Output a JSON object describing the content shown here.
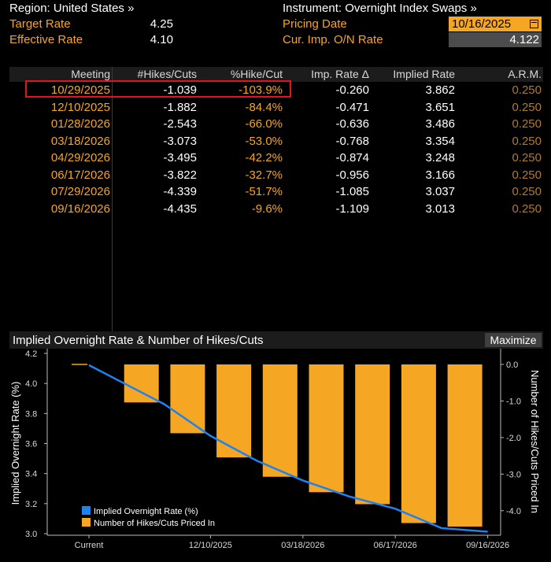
{
  "header": {
    "region": "Region: United States »",
    "target_rate_label": "Target Rate",
    "target_rate_value": "4.25",
    "effective_rate_label": "Effective Rate",
    "effective_rate_value": "4.10",
    "instrument": "Instrument: Overnight Index Swaps »",
    "pricing_date_label": "Pricing Date",
    "pricing_date_value": "10/16/2025",
    "cur_imp_label": "Cur. Imp. O/N Rate",
    "cur_imp_value": "4.122"
  },
  "table": {
    "columns": [
      "Meeting",
      "#Hikes/Cuts",
      "%Hike/Cut",
      "Imp. Rate Δ",
      "Implied Rate",
      "A.R.M."
    ],
    "rows": [
      [
        "10/29/2025",
        "-1.039",
        "-103.9%",
        "-0.260",
        "3.862",
        "0.250"
      ],
      [
        "12/10/2025",
        "-1.882",
        "-84.4%",
        "-0.471",
        "3.651",
        "0.250"
      ],
      [
        "01/28/2026",
        "-2.543",
        "-66.0%",
        "-0.636",
        "3.486",
        "0.250"
      ],
      [
        "03/18/2026",
        "-3.073",
        "-53.0%",
        "-0.768",
        "3.354",
        "0.250"
      ],
      [
        "04/29/2026",
        "-3.495",
        "-42.2%",
        "-0.874",
        "3.248",
        "0.250"
      ],
      [
        "06/17/2026",
        "-3.822",
        "-32.7%",
        "-0.956",
        "3.166",
        "0.250"
      ],
      [
        "07/29/2026",
        "-4.339",
        "-51.7%",
        "-1.085",
        "3.037",
        "0.250"
      ],
      [
        "09/16/2026",
        "-4.435",
        "-9.6%",
        "-1.109",
        "3.013",
        "0.250"
      ]
    ]
  },
  "chart_panel": {
    "title": "Implied Overnight Rate & Number of Hikes/Cuts",
    "maximize_label": "Maximize"
  },
  "colors": {
    "accent": "#f5a623",
    "line": "#1e82f0",
    "highlight": "#e0141e"
  },
  "chart_data": {
    "type": "bar",
    "categories": [
      "Current",
      "10/29/2025",
      "12/10/2025",
      "01/28/2026",
      "03/18/2026",
      "04/29/2026",
      "06/17/2026",
      "07/29/2026",
      "09/16/2026"
    ],
    "x_tick_labels": [
      "Current",
      "12/10/2025",
      "03/18/2026",
      "06/17/2026",
      "09/16/2026"
    ],
    "series": [
      {
        "name": "Implied Overnight Rate (%)",
        "type": "line",
        "axis": "left",
        "color": "#1e82f0",
        "values": [
          4.122,
          3.862,
          3.651,
          3.486,
          3.354,
          3.248,
          3.166,
          3.037,
          3.013
        ]
      },
      {
        "name": "Number of Hikes/Cuts Priced In",
        "type": "bar",
        "axis": "right",
        "color": "#f5a623",
        "values": [
          0,
          -1.039,
          -1.882,
          -2.543,
          -3.073,
          -3.495,
          -3.822,
          -4.339,
          -4.435
        ]
      }
    ],
    "ylabel": "Implied Overnight Rate (%)",
    "ylabel_right": "Number of Hikes/Cuts Priced In",
    "ylim": [
      3.0,
      4.2
    ],
    "ylim_right": [
      -4.5,
      0.0
    ],
    "y_ticks": [
      "3.0",
      "3.2",
      "3.4",
      "3.6",
      "3.8",
      "4.0",
      "4.2"
    ],
    "y_ticks_right": [
      "0.0",
      "-1.0",
      "-2.0",
      "-3.0",
      "-4.0"
    ],
    "legend": "bottom-left",
    "grid": false
  }
}
